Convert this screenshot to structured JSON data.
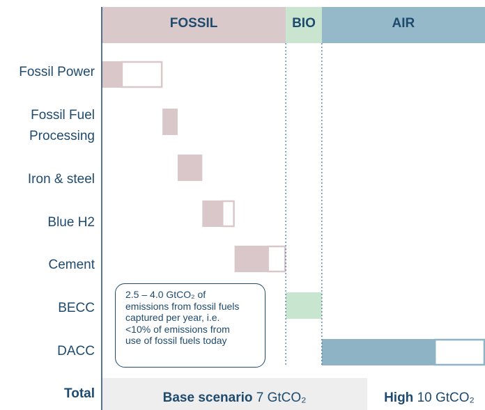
{
  "chart_data": {
    "type": "waterfall",
    "regions": [
      {
        "label": "FOSSIL",
        "color": "#d9c9cb"
      },
      {
        "label": "BIO",
        "color": "#c9e5cf"
      },
      {
        "label": "AIR",
        "color": "#95b9c8"
      }
    ],
    "categories": [
      "Fossil Power",
      "Fossil Fuel Processing",
      "Iron & steel",
      "Blue H2",
      "Cement",
      "BECC",
      "DACC"
    ],
    "series": [
      {
        "colors": [
          "#d9c7c9",
          "#d9c7c9",
          "#d9c7c9",
          "#d9c7c9",
          "#d9c7c9",
          "#c8e6cf",
          "#8db3c4"
        ],
        "values": [
          0.55,
          0.4,
          0.65,
          0.55,
          0.9,
          0.95,
          3.0
        ]
      },
      {
        "color": "#ffffff",
        "values": [
          1.05,
          0,
          0,
          0.3,
          0.45,
          0,
          1.3
        ]
      }
    ],
    "xlim": [
      0,
      10.1
    ],
    "annotation": [
      "2.5 – 4.0 GtCO₂ of",
      "emissions from fossil fuels",
      "captured per year, i.e.",
      "<10% of emissions from",
      "use of fossil fuels today"
    ],
    "totals": {
      "label": "Total",
      "base": {
        "name": "Base scenario",
        "value": 7,
        "unit": "GtCO₂",
        "color": "#eeeeee"
      },
      "high": {
        "name": "High",
        "value": 10,
        "unit": "GtCO₂",
        "color": "#ffffff"
      }
    }
  }
}
